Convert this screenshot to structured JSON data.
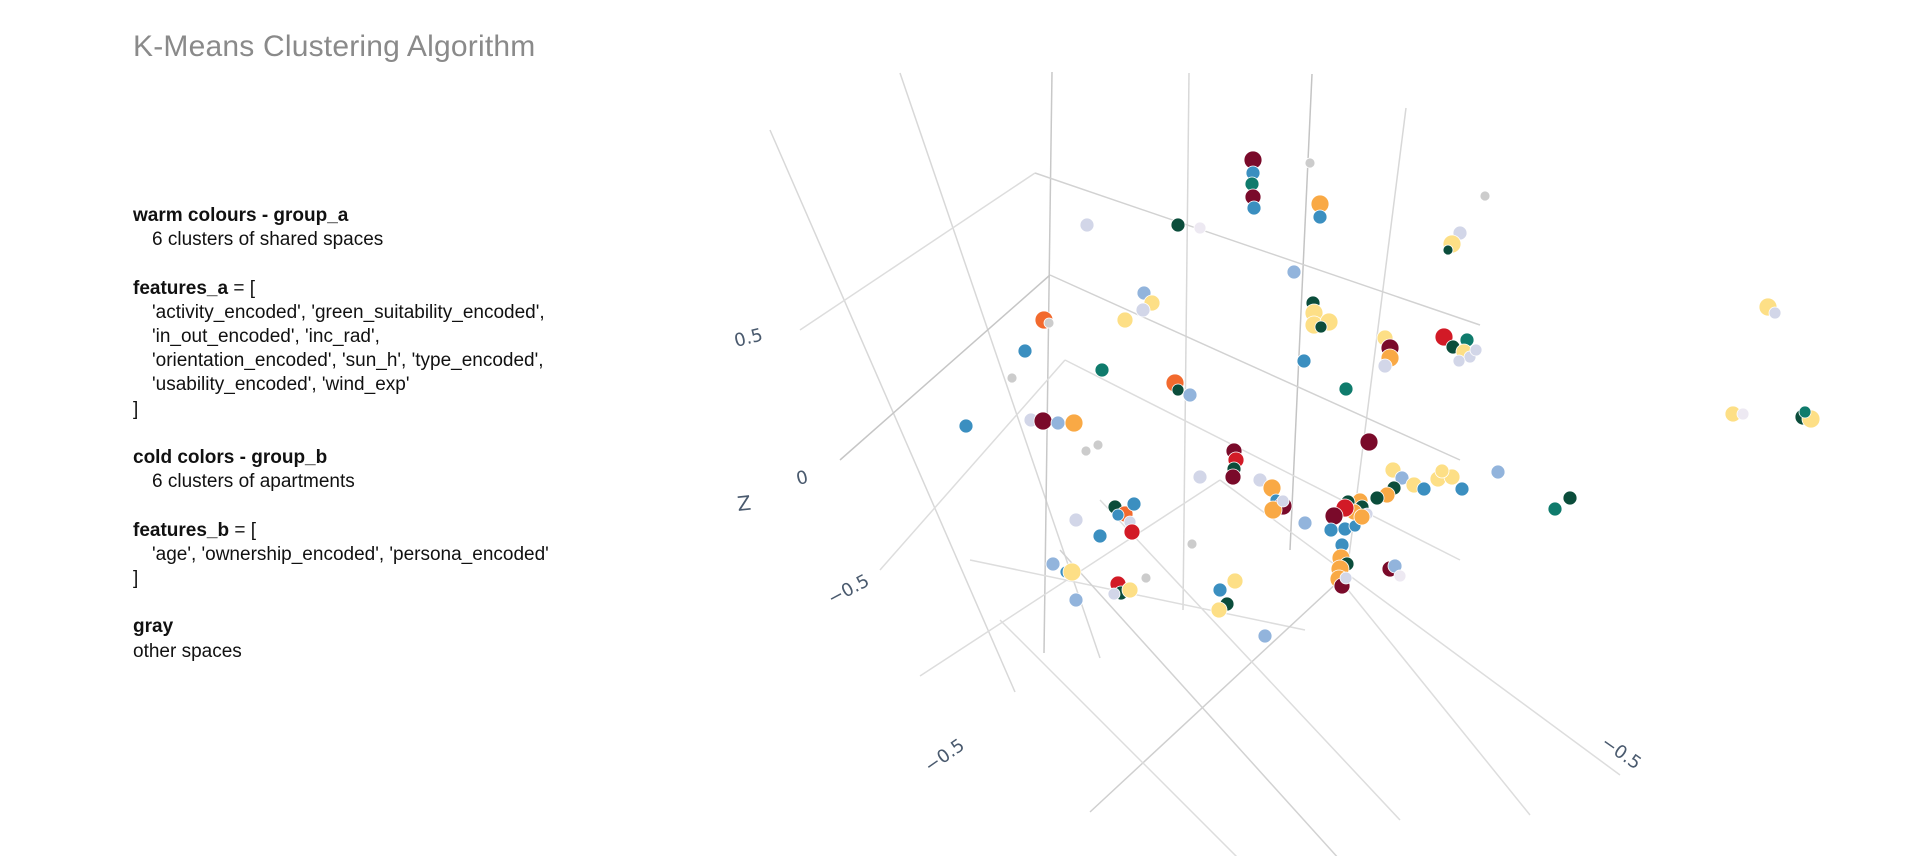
{
  "page": {
    "title": "K-Means Clustering Algorithm"
  },
  "legend_text": {
    "warm": {
      "heading": "warm colours - group_a",
      "description": "6 clusters of shared spaces"
    },
    "features_a": {
      "name": "features_a",
      "operator": " = [",
      "lines": [
        "'activity_encoded', 'green_suitability_encoded',",
        "'in_out_encoded', 'inc_rad',",
        "'orientation_encoded', 'sun_h', 'type_encoded',",
        "'usability_encoded', 'wind_exp'"
      ],
      "close": "]"
    },
    "cold": {
      "heading": "cold colors - group_b",
      "description": "6 clusters of apartments"
    },
    "features_b": {
      "name": "features_b",
      "operator": " = [",
      "lines": [
        "'age', 'ownership_encoded', 'persona_encoded'"
      ],
      "close": "]"
    },
    "gray": {
      "heading": "gray",
      "description": "other spaces"
    }
  },
  "chart_data": {
    "type": "scatter",
    "subtype": "3d-scatter",
    "axes": {
      "z_title": "Z",
      "z_ticks": [
        "0.5",
        "0",
        "−0.5"
      ],
      "left_floor_ticks": [
        "−0.5"
      ],
      "right_floor_ticks": [
        "−0.5"
      ]
    },
    "grid": true,
    "cluster_colors": {
      "warm_a1": "#7a0a2a",
      "warm_a2": "#d21a26",
      "warm_a3": "#f26a2e",
      "warm_a4": "#f9a945",
      "warm_a5": "#fddf86",
      "warm_a6": "#fff2bf",
      "cold_b1": "#0b4d3b",
      "cold_b2": "#0f7b6c",
      "cold_b3": "#3b8fc0",
      "cold_b4": "#92b4dc",
      "cold_b5": "#d2d6e8",
      "cold_b6": "#ede9f2",
      "gray": "#cccccc"
    }
  }
}
